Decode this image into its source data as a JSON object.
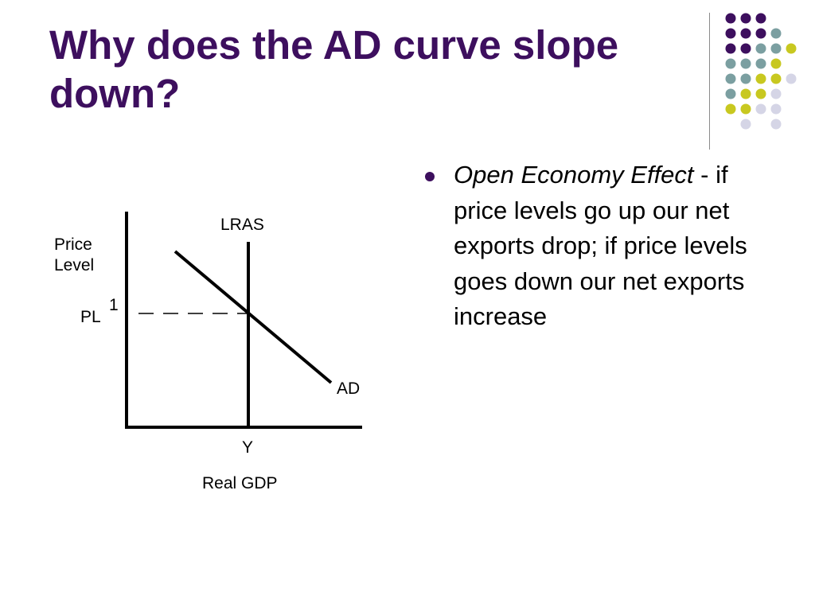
{
  "slide": {
    "title": "Why does the AD curve slope down?"
  },
  "bullets": [
    {
      "term": "Open Economy Effect",
      "separator": " - ",
      "body": "if price levels go up our net exports drop; if price levels goes down our net exports increase"
    }
  ],
  "diagram": {
    "y_axis_label_line1": "Price",
    "y_axis_label_line2": "Level",
    "pl_label": "PL",
    "pl_subscript": "1",
    "lras_label": "LRAS",
    "ad_label": "AD",
    "y_label": "Y",
    "x_axis_label": "Real GDP"
  },
  "colors": {
    "title": "#3d0f5e",
    "accent_purple": "#3d0f5e",
    "accent_teal": "#7b9fa1",
    "accent_yellow": "#c8c820",
    "accent_lavender": "#d5d5e6"
  }
}
